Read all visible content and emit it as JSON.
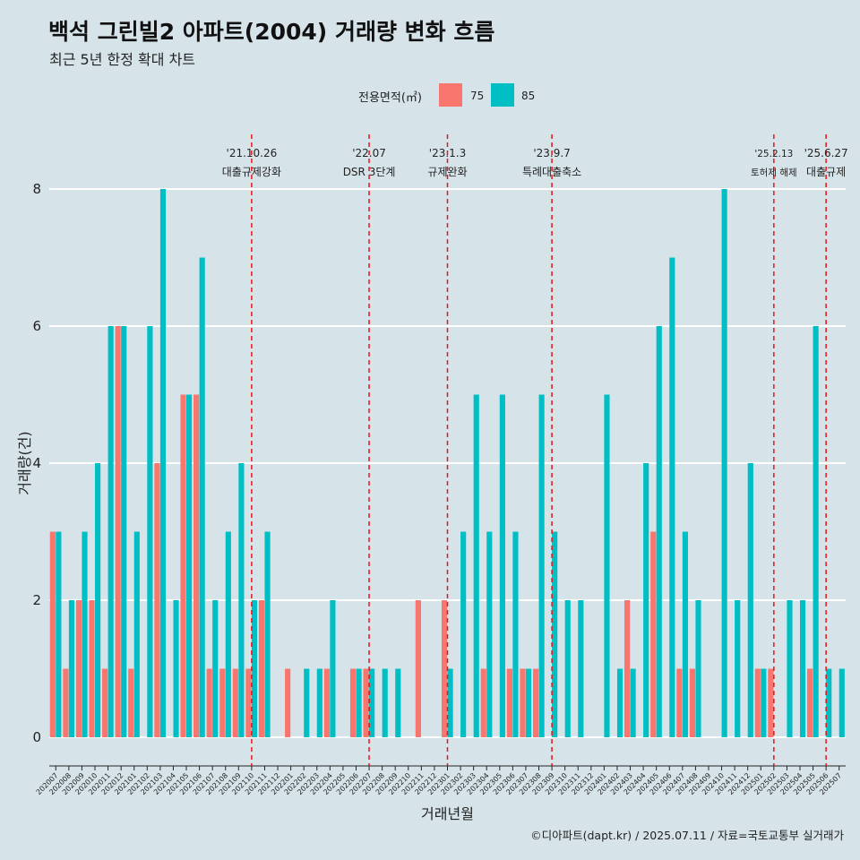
{
  "header": {
    "title": "백석 그린빌2 아파트(2004) 거래량 변화 흐름",
    "subtitle": "최근 5년 한정 확대 차트"
  },
  "legend": {
    "title": "전용면적(㎡)",
    "items": [
      {
        "label": "75",
        "color": "#f8766d"
      },
      {
        "label": "85",
        "color": "#00bfc4"
      }
    ]
  },
  "caption": "©디아파트(dapt.kr) / 2025.07.11 / 자료=국토교통부 실거래가",
  "chart_data": {
    "type": "bar",
    "xlabel": "거래년월",
    "ylabel": "거래량(건)",
    "ylim": [
      0,
      8
    ],
    "yticks": [
      0,
      2,
      4,
      6,
      8
    ],
    "categories": [
      "202007",
      "202008",
      "202009",
      "202010",
      "202011",
      "202012",
      "202101",
      "202102",
      "202103",
      "202104",
      "202105",
      "202106",
      "202107",
      "202108",
      "202109",
      "202110",
      "202111",
      "202112",
      "202201",
      "202202",
      "202203",
      "202204",
      "202205",
      "202206",
      "202207",
      "202208",
      "202209",
      "202210",
      "202211",
      "202212",
      "202301",
      "202302",
      "202303",
      "202304",
      "202305",
      "202306",
      "202307",
      "202308",
      "202309",
      "202310",
      "202311",
      "202312",
      "202401",
      "202402",
      "202403",
      "202404",
      "202405",
      "202406",
      "202407",
      "202408",
      "202409",
      "202410",
      "202411",
      "202412",
      "202501",
      "202502",
      "202503",
      "202504",
      "202505",
      "202506",
      "202507"
    ],
    "series": [
      {
        "name": "75",
        "color": "#f8766d",
        "values": [
          3,
          1,
          2,
          2,
          1,
          6,
          1,
          0,
          4,
          0,
          5,
          5,
          1,
          1,
          1,
          1,
          2,
          0,
          1,
          0,
          0,
          1,
          0,
          1,
          1,
          0,
          0,
          0,
          2,
          0,
          2,
          0,
          0,
          1,
          0,
          1,
          1,
          1,
          0,
          0,
          0,
          0,
          0,
          0,
          2,
          0,
          3,
          0,
          1,
          1,
          0,
          0,
          0,
          0,
          1,
          1,
          0,
          0,
          1,
          0,
          0
        ]
      },
      {
        "name": "85",
        "color": "#00bfc4",
        "values": [
          3,
          2,
          3,
          4,
          6,
          6,
          3,
          6,
          8,
          2,
          5,
          7,
          2,
          3,
          4,
          2,
          3,
          0,
          0,
          1,
          1,
          2,
          0,
          1,
          1,
          1,
          1,
          0,
          0,
          0,
          1,
          3,
          5,
          3,
          5,
          3,
          1,
          5,
          3,
          2,
          2,
          0,
          5,
          1,
          1,
          4,
          6,
          7,
          3,
          2,
          0,
          8,
          2,
          4,
          1,
          0,
          2,
          2,
          6,
          1,
          1
        ]
      }
    ],
    "events": [
      {
        "x": "202110",
        "date": "'21.10.26",
        "label": "대출규제강화"
      },
      {
        "x": "202207",
        "date": "'22.07",
        "label": "DSR 3단계"
      },
      {
        "x": "202301",
        "date": "'23.1.3",
        "label": "규제완화"
      },
      {
        "x": "202309",
        "date": "'23.9.7",
        "label": "특례대출축소"
      },
      {
        "x": "202502",
        "date": "'25.2.13",
        "label": "토허제 해제"
      },
      {
        "x": "202506",
        "date": "'25.6.27",
        "label": "대출규제"
      }
    ]
  }
}
